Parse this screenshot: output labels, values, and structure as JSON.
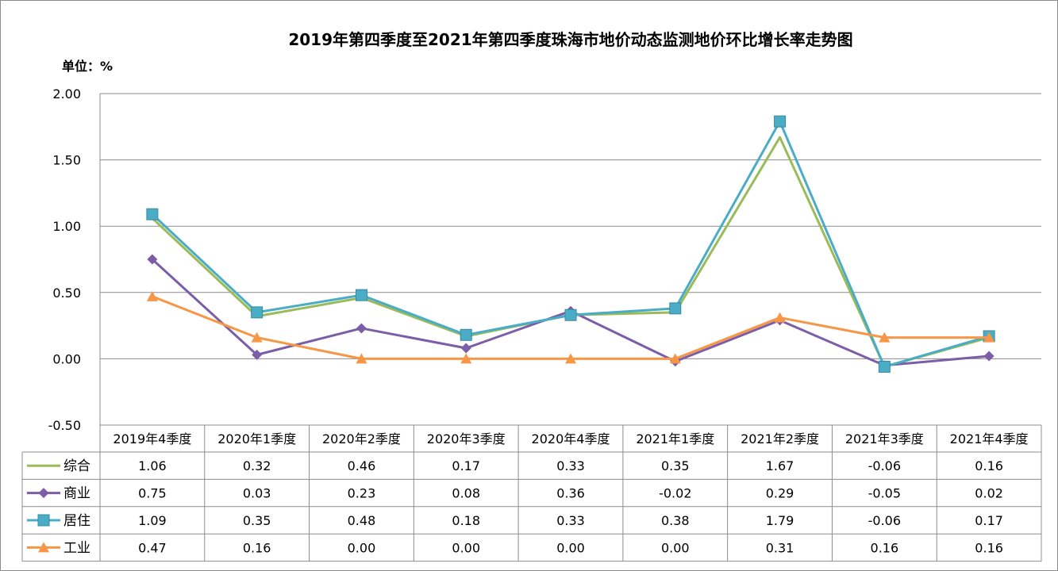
{
  "title": "2019年第四季度至2021年第四季度珠海市地价动态监测地价环比增长率走势图",
  "unit_label": "单位：%",
  "chart_data": {
    "type": "line",
    "title": "2019年第四季度至2021年第四季度珠海市地价动态监测地价环比增长率走势图",
    "ylabel": "单位：%",
    "categories": [
      "2019年4季度",
      "2020年1季度",
      "2020年2季度",
      "2020年3季度",
      "2020年4季度",
      "2021年1季度",
      "2021年2季度",
      "2021年3季度",
      "2021年4季度"
    ],
    "y_ticks": [
      "2.00",
      "1.50",
      "1.00",
      "0.50",
      "0.00",
      "-0.50"
    ],
    "ylim": [
      -0.5,
      2.0
    ],
    "grid": true,
    "legend": "data-table-left",
    "series": [
      {
        "name": "综合",
        "color": "#9bbb59",
        "marker": "none",
        "values": [
          1.06,
          0.32,
          0.46,
          0.17,
          0.33,
          0.35,
          1.67,
          -0.06,
          0.16
        ],
        "labels": [
          "1.06",
          "0.32",
          "0.46",
          "0.17",
          "0.33",
          "0.35",
          "1.67",
          "-0.06",
          "0.16"
        ]
      },
      {
        "name": "商业",
        "color": "#7b5ea7",
        "marker": "diamond",
        "values": [
          0.75,
          0.03,
          0.23,
          0.08,
          0.36,
          -0.02,
          0.29,
          -0.05,
          0.02
        ],
        "labels": [
          "0.75",
          "0.03",
          "0.23",
          "0.08",
          "0.36",
          "-0.02",
          "0.29",
          "-0.05",
          "0.02"
        ]
      },
      {
        "name": "居住",
        "color": "#4bacc6",
        "marker": "square",
        "values": [
          1.09,
          0.35,
          0.48,
          0.18,
          0.33,
          0.38,
          1.79,
          -0.06,
          0.17
        ],
        "labels": [
          "1.09",
          "0.35",
          "0.48",
          "0.18",
          "0.33",
          "0.38",
          "1.79",
          "-0.06",
          "0.17"
        ]
      },
      {
        "name": "工业",
        "color": "#f79646",
        "marker": "triangle",
        "values": [
          0.47,
          0.16,
          0.0,
          0.0,
          0.0,
          0.0,
          0.31,
          0.16,
          0.16
        ],
        "labels": [
          "0.47",
          "0.16",
          "0.00",
          "0.00",
          "0.00",
          "0.00",
          "0.31",
          "0.16",
          "0.16"
        ]
      }
    ]
  }
}
